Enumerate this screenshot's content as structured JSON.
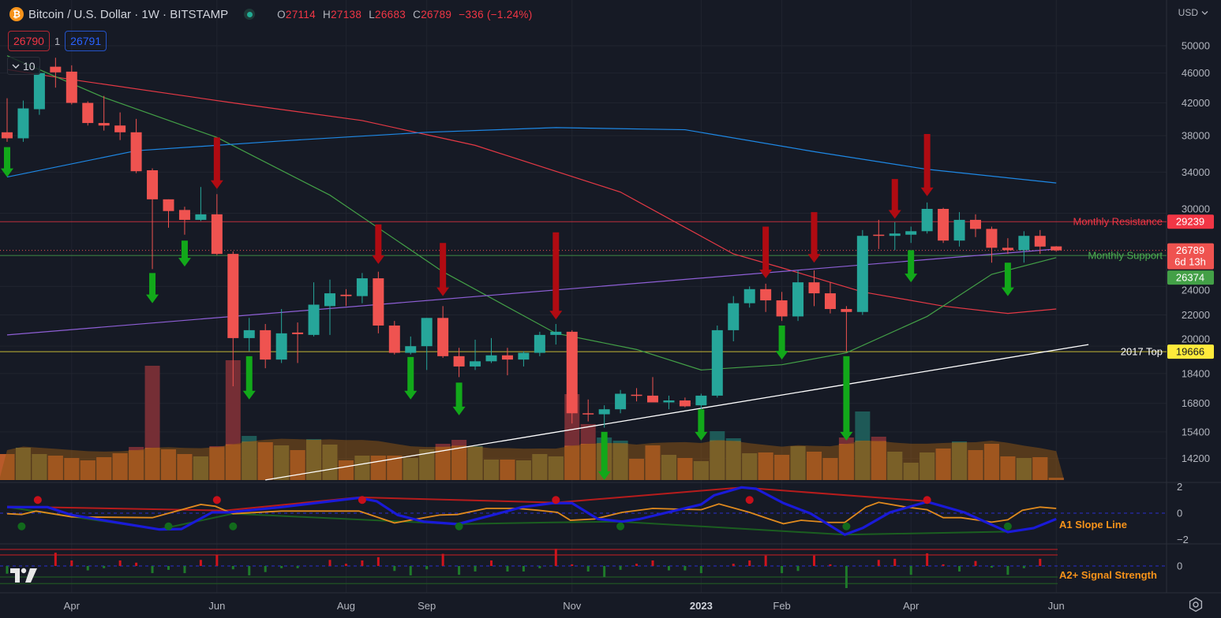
{
  "header": {
    "symbol_title": "Bitcoin / U.S. Dollar · 1W · BITSTAMP",
    "ohlc": {
      "o_label": "O",
      "o": "27114",
      "h_label": "H",
      "h": "27138",
      "l_label": "L",
      "l": "26683",
      "c_label": "C",
      "c": "26789",
      "change": "−336 (−1.24%)"
    },
    "sell_price": "26790",
    "spread": "1",
    "buy_price": "26791",
    "indicators_toggle": "10",
    "currency": "USD"
  },
  "colors": {
    "up": "#26a69a",
    "down": "#ef5350",
    "up_arrow": "#12a81a",
    "down_arrow": "#b00b12",
    "resistance": "#f23645",
    "support": "#4caf50",
    "top2017": "#ffeb3b",
    "osc_label": "#f7931a"
  },
  "price_axis": {
    "labels": [
      "50000",
      "46000",
      "42000",
      "38000",
      "34000",
      "30000",
      "24000",
      "22000",
      "20000",
      "18400",
      "16800",
      "15400",
      "14200"
    ]
  },
  "time_axis": {
    "labels": [
      {
        "label": "Apr",
        "index": 4
      },
      {
        "label": "Jun",
        "index": 13
      },
      {
        "label": "Aug",
        "index": 21
      },
      {
        "label": "Sep",
        "index": 26
      },
      {
        "label": "Nov",
        "index": 35
      },
      {
        "label": "2023",
        "index": 43,
        "bold": true
      },
      {
        "label": "Feb",
        "index": 48
      },
      {
        "label": "Apr",
        "index": 56
      },
      {
        "label": "Jun",
        "index": 65
      }
    ]
  },
  "levels": [
    {
      "label": "Monthly Resistance",
      "price": 29239,
      "tag": "29239",
      "kind": "resistance"
    },
    {
      "label": "Monthly Support",
      "price": 26374,
      "tag": "26374",
      "kind": "support"
    },
    {
      "label": "2017 Top",
      "price": 19666,
      "tag": "19666",
      "kind": "top2017"
    }
  ],
  "last_price": {
    "price": 26789,
    "tag": "26789",
    "countdown": "6d 13h"
  },
  "chart_data": {
    "type": "candlestick",
    "title": "Bitcoin / U.S. Dollar · 1W · BITSTAMP",
    "scale": "log",
    "ylim": [
      13300,
      52000
    ],
    "candles_ohlc": [
      [
        38400,
        42600,
        37300,
        37700
      ],
      [
        37700,
        42300,
        37300,
        41300
      ],
      [
        41200,
        47000,
        40500,
        46000
      ],
      [
        46900,
        48200,
        44000,
        46100
      ],
      [
        46200,
        47100,
        41800,
        42000
      ],
      [
        42000,
        42200,
        39200,
        39500
      ],
      [
        39500,
        42900,
        38600,
        39200
      ],
      [
        39200,
        40800,
        37500,
        38400
      ],
      [
        38400,
        40000,
        33900,
        34100
      ],
      [
        34200,
        34400,
        25300,
        31300
      ],
      [
        31300,
        31300,
        28700,
        30200
      ],
      [
        30300,
        30600,
        28100,
        29400
      ],
      [
        29400,
        32500,
        29300,
        29900
      ],
      [
        29900,
        31800,
        26400,
        26500
      ],
      [
        26500,
        26700,
        17700,
        20500
      ],
      [
        20500,
        21800,
        19700,
        21000
      ],
      [
        21000,
        21400,
        18700,
        19200
      ],
      [
        19200,
        22400,
        19000,
        20800
      ],
      [
        20850,
        21500,
        19000,
        20750
      ],
      [
        20700,
        24300,
        20600,
        22700
      ],
      [
        22600,
        24500,
        20700,
        23500
      ],
      [
        23400,
        23800,
        22600,
        23300
      ],
      [
        23300,
        25000,
        22800,
        24600
      ],
      [
        24600,
        25100,
        20800,
        21300
      ],
      [
        21300,
        21600,
        19500,
        19600
      ],
      [
        19600,
        20600,
        19500,
        20000
      ],
      [
        20000,
        21800,
        18600,
        21800
      ],
      [
        21800,
        22600,
        19300,
        19400
      ],
      [
        19400,
        19900,
        18200,
        18800
      ],
      [
        18800,
        20400,
        18600,
        19100
      ],
      [
        19100,
        20500,
        19000,
        19450
      ],
      [
        19450,
        19900,
        18300,
        19200
      ],
      [
        19200,
        19700,
        18800,
        19600
      ],
      [
        19600,
        20900,
        19400,
        20700
      ],
      [
        20700,
        21400,
        20100,
        20900
      ],
      [
        20900,
        21000,
        15800,
        16300
      ],
      [
        16300,
        17000,
        15900,
        16250
      ],
      [
        16250,
        16700,
        15600,
        16500
      ],
      [
        16500,
        17500,
        16300,
        17300
      ],
      [
        17250,
        17600,
        16900,
        17200
      ],
      [
        17200,
        18200,
        16900,
        16850
      ],
      [
        16850,
        17200,
        16500,
        16950
      ],
      [
        16950,
        17100,
        16600,
        16650
      ],
      [
        16700,
        17300,
        16500,
        17200
      ],
      [
        17200,
        21300,
        17100,
        21000
      ],
      [
        21000,
        23300,
        20300,
        22800
      ],
      [
        22800,
        24000,
        22500,
        23800
      ],
      [
        23800,
        24200,
        22200,
        23000
      ],
      [
        23000,
        23600,
        21600,
        21900
      ],
      [
        21900,
        25200,
        21600,
        24300
      ],
      [
        24300,
        25200,
        22600,
        23500
      ],
      [
        23500,
        24300,
        22100,
        22400
      ],
      [
        22400,
        22600,
        19700,
        22200
      ],
      [
        22200,
        28500,
        22000,
        28000
      ],
      [
        28100,
        29400,
        26900,
        28000
      ],
      [
        28000,
        29200,
        26800,
        28200
      ],
      [
        28100,
        28800,
        27400,
        28400
      ],
      [
        28400,
        31000,
        28200,
        30400
      ],
      [
        30400,
        30500,
        27400,
        27600
      ],
      [
        27600,
        30100,
        27100,
        29400
      ],
      [
        29400,
        29900,
        27900,
        28600
      ],
      [
        28600,
        28800,
        25800,
        27000
      ],
      [
        27000,
        27800,
        26500,
        26800
      ],
      [
        26800,
        28400,
        25800,
        28000
      ],
      [
        28000,
        28500,
        26500,
        27100
      ],
      [
        27114,
        27138,
        26683,
        26789
      ]
    ],
    "volume_relative": [
      33,
      41,
      33,
      31,
      28,
      25,
      29,
      34,
      42,
      145,
      39,
      33,
      30,
      43,
      152,
      56,
      48,
      44,
      38,
      52,
      45,
      25,
      31,
      31,
      31,
      28,
      39,
      46,
      51,
      43,
      26,
      26,
      25,
      33,
      30,
      109,
      71,
      54,
      50,
      27,
      44,
      32,
      28,
      24,
      62,
      53,
      34,
      35,
      32,
      43,
      36,
      28,
      54,
      87,
      55,
      36,
      22,
      35,
      40,
      49,
      38,
      46,
      30,
      28,
      29,
      3
    ],
    "moving_averages": [
      {
        "name": "red",
        "color": "#e53945",
        "points": [
          [
            0,
            46500
          ],
          [
            4,
            45100
          ],
          [
            14,
            42000
          ],
          [
            22,
            39800
          ],
          [
            29,
            36900
          ],
          [
            38,
            32000
          ],
          [
            45,
            26500
          ],
          [
            48,
            25400
          ],
          [
            53,
            23600
          ],
          [
            58,
            22600
          ],
          [
            62,
            22100
          ],
          [
            65,
            22400
          ]
        ]
      },
      {
        "name": "green",
        "color": "#43a047",
        "points": [
          [
            0,
            48500
          ],
          [
            6,
            42700
          ],
          [
            13,
            37800
          ],
          [
            20,
            31700
          ],
          [
            27,
            25100
          ],
          [
            34,
            20800
          ],
          [
            39,
            19800
          ],
          [
            43,
            18600
          ],
          [
            48,
            18900
          ],
          [
            52,
            19600
          ],
          [
            57,
            21900
          ],
          [
            61,
            24900
          ],
          [
            65,
            26200
          ]
        ]
      },
      {
        "name": "blue",
        "color": "#1e88e5",
        "points": [
          [
            0,
            33500
          ],
          [
            8,
            36300
          ],
          [
            17,
            37400
          ],
          [
            26,
            38400
          ],
          [
            34,
            38950
          ],
          [
            42,
            38700
          ],
          [
            50,
            36200
          ],
          [
            57,
            34300
          ],
          [
            65,
            32900
          ]
        ]
      },
      {
        "name": "purple",
        "color": "#8e5fd6",
        "points": [
          [
            0,
            20700
          ],
          [
            65,
            26900
          ]
        ]
      }
    ],
    "trendline": {
      "color": "#ffffff",
      "points": [
        [
          16,
          13300
        ],
        [
          67,
          20100
        ]
      ]
    },
    "buy_signals": [
      [
        0,
        36700,
        33500
      ],
      [
        9,
        25000,
        22800
      ],
      [
        11,
        27600,
        25500
      ],
      [
        15,
        19400,
        17000
      ],
      [
        25,
        19350,
        17000
      ],
      [
        28,
        17900,
        16200
      ],
      [
        37,
        15400,
        13300
      ],
      [
        43,
        16500,
        15000
      ],
      [
        48,
        21300,
        19200
      ],
      [
        52,
        19400,
        15000
      ],
      [
        56,
        26800,
        24300
      ],
      [
        62,
        25800,
        23300
      ]
    ],
    "sell_signals": [
      [
        13,
        37800,
        32300
      ],
      [
        23,
        29000,
        25700
      ],
      [
        27,
        27400,
        23300
      ],
      [
        34,
        28300,
        21700
      ],
      [
        47,
        28800,
        24600
      ],
      [
        50,
        30100,
        25800
      ],
      [
        55,
        33300,
        29500
      ],
      [
        57,
        38200,
        31600
      ]
    ],
    "oscillator": {
      "title": "A1 Slope Line",
      "axis_labels": [
        "2",
        "0",
        "−2"
      ],
      "axis_values": [
        2,
        0,
        -2
      ],
      "blue": [
        [
          0,
          0.46
        ],
        [
          2.5,
          0.46
        ],
        [
          4,
          -0.14
        ],
        [
          9.4,
          -1.23
        ],
        [
          10.8,
          -1.2
        ],
        [
          12.7,
          0.06
        ],
        [
          13.7,
          0.06
        ],
        [
          17,
          0.46
        ],
        [
          21.8,
          1.16
        ],
        [
          22.9,
          0.9
        ],
        [
          24.2,
          -0.14
        ],
        [
          25.8,
          -0.64
        ],
        [
          27.9,
          -0.83
        ],
        [
          30.1,
          -0.14
        ],
        [
          31.9,
          0.46
        ],
        [
          33.8,
          0.76
        ],
        [
          35,
          0.76
        ],
        [
          36.6,
          -0.44
        ],
        [
          38.1,
          -0.64
        ],
        [
          39.2,
          -0.44
        ],
        [
          43,
          0.66
        ],
        [
          43.8,
          1.35
        ],
        [
          45.5,
          1.95
        ],
        [
          46.4,
          1.85
        ],
        [
          48.1,
          0.76
        ],
        [
          49.8,
          -0.04
        ],
        [
          51.9,
          -1.63
        ],
        [
          53,
          -1.13
        ],
        [
          54.7,
          0.06
        ],
        [
          57,
          0.86
        ],
        [
          59.3,
          0.06
        ],
        [
          62,
          -1.43
        ],
        [
          63.6,
          -1.13
        ],
        [
          65,
          -0.44
        ]
      ],
      "orange": [
        [
          0,
          -0.04
        ],
        [
          0.9,
          -0.1
        ],
        [
          1.8,
          0.16
        ],
        [
          4,
          -0.28
        ],
        [
          9,
          -0.34
        ],
        [
          12,
          0.66
        ],
        [
          12.9,
          0.52
        ],
        [
          14,
          -0.04
        ],
        [
          17,
          0.16
        ],
        [
          21.8,
          0.16
        ],
        [
          24,
          -0.74
        ],
        [
          26.8,
          -0.14
        ],
        [
          27.9,
          -0.1
        ],
        [
          29.7,
          0.36
        ],
        [
          31.6,
          0.36
        ],
        [
          32.9,
          0.22
        ],
        [
          34.1,
          0.06
        ],
        [
          34.9,
          -0.54
        ],
        [
          36.4,
          -0.44
        ],
        [
          38.1,
          0.06
        ],
        [
          40,
          0.36
        ],
        [
          43,
          0.26
        ],
        [
          44.1,
          0.7
        ],
        [
          46,
          0.06
        ],
        [
          47.2,
          -0.44
        ],
        [
          48.1,
          -0.8
        ],
        [
          49.2,
          -0.54
        ],
        [
          50.9,
          -0.7
        ],
        [
          51.9,
          -0.7
        ],
        [
          53.2,
          0.46
        ],
        [
          54,
          0.82
        ],
        [
          55.7,
          0.46
        ],
        [
          57,
          0.26
        ],
        [
          58,
          -0.34
        ],
        [
          59.1,
          -0.34
        ],
        [
          61,
          -0.68
        ],
        [
          62,
          -0.5
        ],
        [
          62.9,
          0.22
        ],
        [
          64,
          0.46
        ],
        [
          65,
          0.36
        ]
      ],
      "top_line": [
        [
          0,
          0.5
        ],
        [
          13.5,
          0.2
        ],
        [
          21.8,
          1.2
        ],
        [
          34,
          0.8
        ],
        [
          45.5,
          1.95
        ],
        [
          57,
          0.9
        ]
      ],
      "bottom_line": [
        [
          0,
          0.46
        ],
        [
          9.4,
          -1.23
        ],
        [
          14,
          -0.04
        ],
        [
          27.9,
          -0.83
        ],
        [
          33.8,
          -0.7
        ],
        [
          37.9,
          -0.64
        ],
        [
          51.9,
          -1.63
        ],
        [
          62,
          -1.4
        ]
      ],
      "top_dots": [
        1.9,
        13,
        22,
        34,
        46,
        57
      ],
      "bottom_dots": [
        0.9,
        10,
        14,
        28,
        38,
        52,
        62
      ]
    },
    "signal_strength": {
      "title": "A2+ Signal Strength",
      "axis_labels": [
        "0"
      ],
      "values": [
        -0.7,
        0,
        0,
        1.2,
        0.5,
        -0.4,
        -0.2,
        0.5,
        0.3,
        -0.65,
        -0.35,
        -0.65,
        0.55,
        1.0,
        -0.3,
        -0.85,
        -0.55,
        -0.2,
        -0.2,
        0,
        0.55,
        0.2,
        0.5,
        0.8,
        -0.45,
        -0.85,
        -0.3,
        1.1,
        -0.8,
        -0.5,
        0.5,
        -0.5,
        -0.5,
        -0.2,
        1.55,
        0.15,
        -0.5,
        -1.0,
        -0.35,
        0.2,
        0.5,
        -0.4,
        -0.4,
        -0.65,
        0,
        0.2,
        0.5,
        0.95,
        -0.65,
        -0.45,
        0.95,
        0.15,
        -2.0,
        0,
        0.55,
        0.65,
        -0.8,
        1.15,
        0.15,
        -0.5,
        0.45,
        -0.15,
        -0.8,
        -0.2,
        0.65,
        0
      ]
    }
  }
}
